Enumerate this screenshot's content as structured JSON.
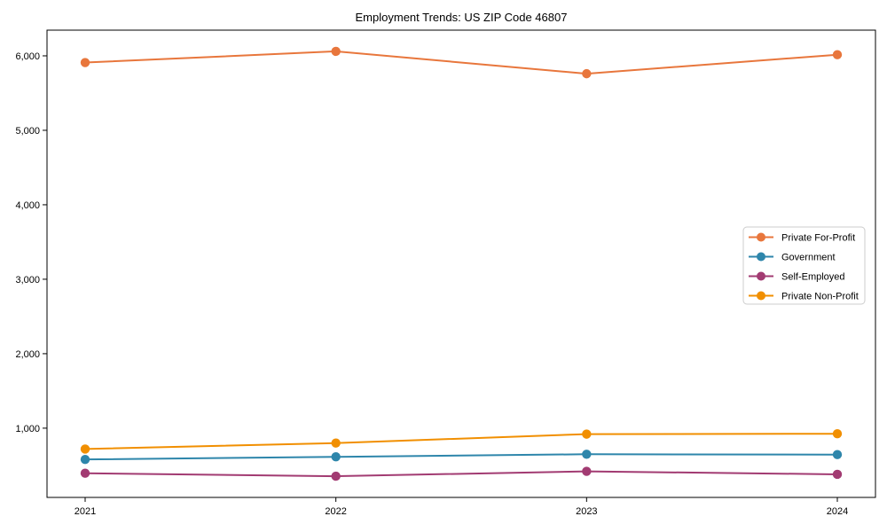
{
  "chart_data": {
    "type": "line",
    "title": "Employment Trends: US ZIP Code 46807",
    "xlabel": "",
    "ylabel": "",
    "categories": [
      "2021",
      "2022",
      "2023",
      "2024"
    ],
    "series": [
      {
        "name": "Private For-Profit",
        "color": "#E8763C",
        "values": [
          5910,
          6060,
          5760,
          6015
        ]
      },
      {
        "name": "Government",
        "color": "#2E86AB",
        "values": [
          580,
          615,
          650,
          645
        ]
      },
      {
        "name": "Self-Employed",
        "color": "#A23B72",
        "values": [
          395,
          355,
          420,
          380
        ]
      },
      {
        "name": "Private Non-Profit",
        "color": "#F18F01",
        "values": [
          720,
          800,
          920,
          925
        ]
      }
    ],
    "ylim": [
      70,
      6345
    ],
    "yticks": [
      {
        "value": 1000,
        "label": "1,000"
      },
      {
        "value": 2000,
        "label": "2,000"
      },
      {
        "value": 3000,
        "label": "3,000"
      },
      {
        "value": 4000,
        "label": "4,000"
      },
      {
        "value": 5000,
        "label": "5,000"
      },
      {
        "value": 6000,
        "label": "6,000"
      }
    ],
    "grid": false,
    "marker": "circle",
    "legend": {
      "position": "right-middle",
      "border_color": "#cccccc",
      "background": "#ffffff"
    },
    "axis_color": "#000000",
    "background": "#ffffff"
  }
}
